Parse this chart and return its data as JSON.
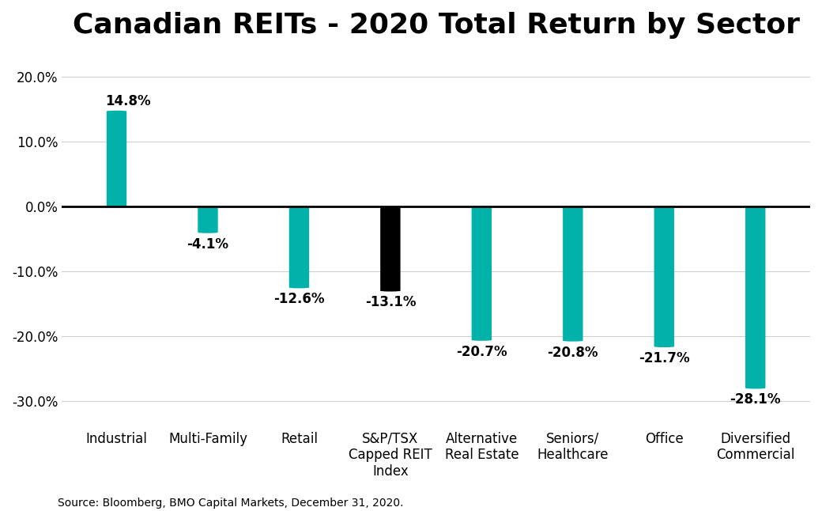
{
  "title": "Canadian REITs - 2020 Total Return by Sector",
  "categories": [
    "Industrial",
    "Multi-Family",
    "Retail",
    "S&P/TSX\nCapped REIT\nIndex",
    "Alternative\nReal Estate",
    "Seniors/\nHealthcare",
    "Office",
    "Diversified\nCommercial"
  ],
  "values": [
    14.8,
    -4.1,
    -12.6,
    -13.1,
    -20.7,
    -20.8,
    -21.7,
    -28.1
  ],
  "bar_colors": [
    "#00B2A9",
    "#00B2A9",
    "#00B2A9",
    "#000000",
    "#00B2A9",
    "#00B2A9",
    "#00B2A9",
    "#00B2A9"
  ],
  "value_labels": [
    "14.8%",
    "-4.1%",
    "-12.6%",
    "-13.1%",
    "-20.7%",
    "-20.8%",
    "-21.7%",
    "-28.1%"
  ],
  "yticks": [
    20.0,
    10.0,
    0.0,
    -10.0,
    -20.0,
    -30.0
  ],
  "ytick_labels": [
    "20.0%",
    "10.0%",
    "0.0%",
    "-10.0%",
    "-20.0%",
    "-30.0%"
  ],
  "ylim": [
    -33,
    23
  ],
  "source_text": "Source: Bloomberg, BMO Capital Markets, December 31, 2020.",
  "background_color": "#ffffff",
  "bar_width": 0.22,
  "rounding_size": 0.11,
  "title_fontsize": 26,
  "label_fontsize": 12,
  "tick_fontsize": 12,
  "source_fontsize": 10
}
